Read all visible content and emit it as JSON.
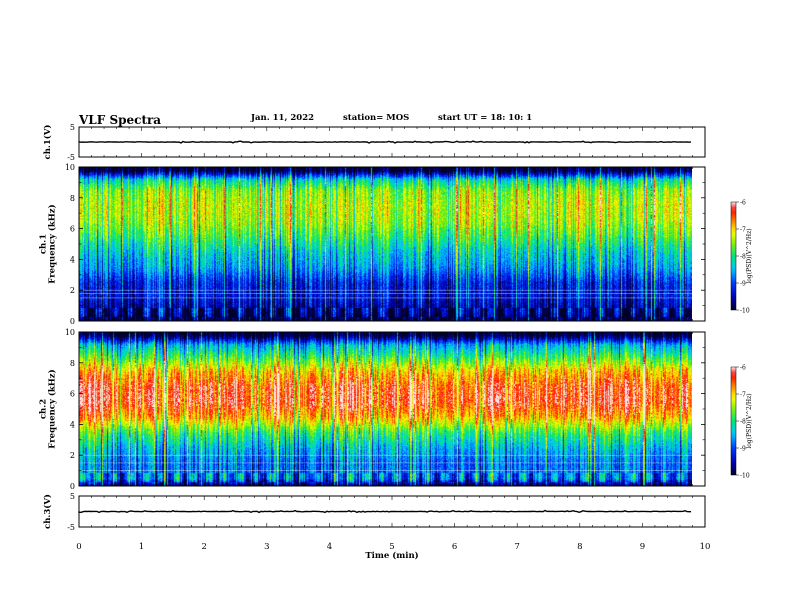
{
  "header": {
    "title": "VLF Spectra",
    "date": "Jan. 11, 2022",
    "station": "station= MOS",
    "start": "start  UT =   18: 10: 1"
  },
  "chart_data": [
    {
      "type": "line",
      "panel": "ch.1 waveform",
      "ylabel": "ch.1(V)",
      "ylim": [
        -5,
        5
      ],
      "yticks": [
        "5",
        "-5"
      ],
      "x": [
        0,
        9.8
      ],
      "values": [
        0,
        0
      ],
      "xlim": [
        0,
        10
      ]
    },
    {
      "type": "heatmap",
      "panel": "ch.1 spectrogram",
      "ylabel": "ch.1\nFrequency (kHz)",
      "ylim": [
        0,
        10
      ],
      "yticks": [
        "0",
        "2",
        "4",
        "6",
        "8",
        "10"
      ],
      "xlim": [
        0,
        10
      ],
      "data_extent": [
        0,
        9.8
      ],
      "colorbar": {
        "label": "log(PSD)(V^2/Hz)",
        "range": [
          -10,
          -6
        ],
        "ticks": [
          "-6",
          "-7",
          "-8",
          "-9",
          "-10"
        ]
      },
      "profile": [
        [
          0,
          -10
        ],
        [
          0.5,
          -9.7
        ],
        [
          1.5,
          -9.3
        ],
        [
          2.5,
          -9.2
        ],
        [
          3.5,
          -8.6
        ],
        [
          4.5,
          -8.3
        ],
        [
          5.5,
          -7.8
        ],
        [
          6.5,
          -7.4
        ],
        [
          7.5,
          -7.3
        ],
        [
          8.5,
          -7.5
        ],
        [
          9.2,
          -8.2
        ],
        [
          9.8,
          -10
        ]
      ],
      "lines_khz": [
        1.5,
        1.8,
        2.0
      ]
    },
    {
      "type": "heatmap",
      "panel": "ch.2 spectrogram",
      "ylabel": "ch.2\nFrequency (kHz)",
      "ylim": [
        0,
        10
      ],
      "yticks": [
        "0",
        "2",
        "4",
        "6",
        "8",
        "10"
      ],
      "xlim": [
        0,
        10
      ],
      "data_extent": [
        0,
        9.8
      ],
      "colorbar": {
        "label": "log(PSD)(V^2/Hz)",
        "range": [
          -10,
          -6
        ],
        "ticks": [
          "-6",
          "-7",
          "-8",
          "-9",
          "-10"
        ]
      },
      "profile": [
        [
          0,
          -10
        ],
        [
          0.5,
          -8.7
        ],
        [
          1.5,
          -8.8
        ],
        [
          2.5,
          -8.4
        ],
        [
          3.5,
          -7.8
        ],
        [
          4.5,
          -6.8
        ],
        [
          5.5,
          -6.3
        ],
        [
          6.5,
          -6.4
        ],
        [
          7.5,
          -6.9
        ],
        [
          8.5,
          -7.9
        ],
        [
          9.2,
          -8.5
        ],
        [
          9.8,
          -10
        ]
      ],
      "lines_khz": [
        1.0,
        1.5,
        2.0
      ]
    },
    {
      "type": "line",
      "panel": "ch.3 waveform",
      "ylabel": "ch.3(V)",
      "ylim": [
        -5,
        5
      ],
      "yticks": [
        "5",
        "-5"
      ],
      "x": [
        0,
        9.8
      ],
      "values": [
        0,
        0
      ],
      "xlim": [
        0,
        10
      ]
    }
  ],
  "xaxis": {
    "xlabel": "Time (min)",
    "ticks": [
      "0",
      "1",
      "2",
      "3",
      "4",
      "5",
      "6",
      "7",
      "8",
      "9",
      "10"
    ]
  },
  "colors": {
    "frame": "#000000",
    "background": "#ffffff"
  }
}
